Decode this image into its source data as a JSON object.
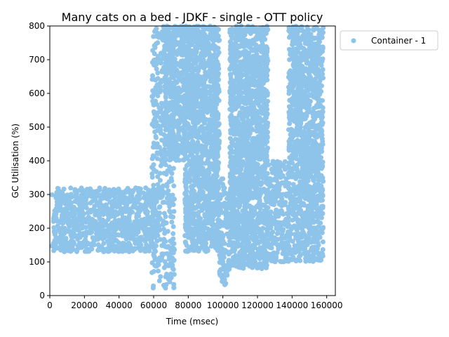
{
  "chart_data": {
    "type": "scatter",
    "title": "Many cats on a bed - JDKF - single -  OTT policy",
    "xlabel": "Time (msec)",
    "ylabel": "GC Utilisation (%)",
    "xlim": [
      0,
      165000
    ],
    "ylim": [
      0,
      800
    ],
    "xticks": [
      0,
      20000,
      40000,
      60000,
      80000,
      100000,
      120000,
      140000,
      160000
    ],
    "yticks": [
      0,
      100,
      200,
      300,
      400,
      500,
      600,
      700,
      800
    ],
    "legend_position": "outside-top-right",
    "grid": false,
    "series": [
      {
        "name": "Container - 1",
        "color": "#8ec3ea",
        "regions": [
          {
            "x": [
              0,
              2000
            ],
            "y": [
              80,
              300
            ],
            "density": 0.02
          },
          {
            "x": [
              2000,
              62000
            ],
            "y": [
              130,
              320
            ],
            "density": 0.5
          },
          {
            "x": [
              59000,
              72000
            ],
            "y": [
              20,
              800
            ],
            "density": 0.25
          },
          {
            "x": [
              66000,
              78000
            ],
            "y": [
              400,
              800
            ],
            "density": 0.5
          },
          {
            "x": [
              78000,
              98000
            ],
            "y": [
              130,
              800
            ],
            "density": 0.6
          },
          {
            "x": [
              98000,
              104000
            ],
            "y": [
              30,
              350
            ],
            "density": 0.4
          },
          {
            "x": [
              104000,
              126000
            ],
            "y": [
              80,
              800
            ],
            "density": 0.6
          },
          {
            "x": [
              126000,
              138000
            ],
            "y": [
              100,
              400
            ],
            "density": 0.4
          },
          {
            "x": [
              138000,
              158000
            ],
            "y": [
              280,
              800
            ],
            "density": 0.55
          },
          {
            "x": [
              138000,
              158000
            ],
            "y": [
              100,
              280
            ],
            "density": 0.45
          }
        ]
      }
    ]
  }
}
